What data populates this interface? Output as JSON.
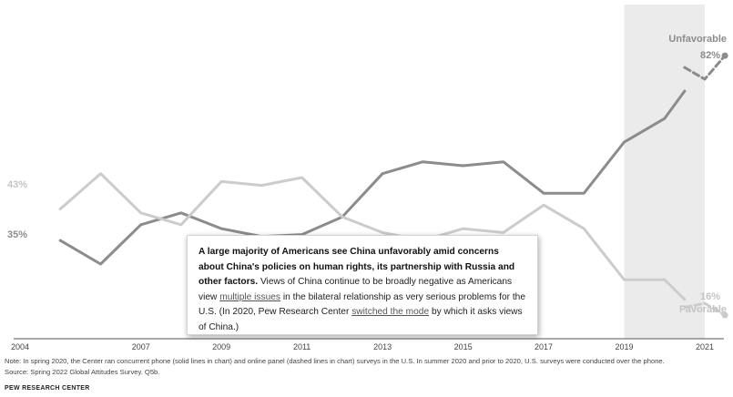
{
  "chart_data": {
    "type": "line",
    "xlim": [
      2004,
      2021
    ],
    "ylim": [
      10,
      95
    ],
    "x_ticks": [
      2004,
      2007,
      2009,
      2011,
      2013,
      2015,
      2017,
      2019,
      2021
    ],
    "shaded_region": [
      2019,
      2021
    ],
    "series": [
      {
        "name": "Unfavorable",
        "color": "#8c8c8c",
        "end_label": "82%",
        "start_label": "",
        "phone": [
          [
            2005,
            35
          ],
          [
            2006,
            29
          ],
          [
            2007,
            39
          ],
          [
            2008,
            42
          ],
          [
            2009,
            38
          ],
          [
            2010,
            36
          ],
          [
            2011,
            36.5
          ],
          [
            2012,
            41
          ],
          [
            2013,
            52
          ],
          [
            2014,
            55
          ],
          [
            2015,
            54
          ],
          [
            2016,
            55
          ],
          [
            2017,
            47
          ],
          [
            2018,
            47
          ],
          [
            2019,
            60
          ],
          [
            2020,
            66
          ],
          [
            2020.5,
            73
          ]
        ],
        "online": [
          [
            2020.5,
            79
          ],
          [
            2021,
            76
          ],
          [
            2021.5,
            82
          ]
        ]
      },
      {
        "name": "Favorable",
        "color": "#cccccc",
        "end_label": "16%",
        "start_label": "",
        "phone": [
          [
            2005,
            43
          ],
          [
            2006,
            52
          ],
          [
            2007,
            42
          ],
          [
            2008,
            39
          ],
          [
            2009,
            50
          ],
          [
            2010,
            49
          ],
          [
            2011,
            51
          ],
          [
            2012,
            41
          ],
          [
            2013,
            37
          ],
          [
            2014,
            35
          ],
          [
            2015,
            38
          ],
          [
            2016,
            37
          ],
          [
            2017,
            44
          ],
          [
            2018,
            38
          ],
          [
            2019,
            25
          ],
          [
            2020,
            25
          ],
          [
            2020.5,
            20
          ]
        ],
        "online": [
          [
            2020.5,
            18
          ],
          [
            2021,
            19
          ],
          [
            2021.5,
            16
          ]
        ]
      }
    ]
  },
  "left_labels": {
    "favorable_start": "43%",
    "unfavorable_start": "35%"
  },
  "right_labels": {
    "unfavorable_name": "Unfavorable",
    "unfavorable_value": "82%",
    "favorable_value": "16%",
    "favorable_name": "Favorable"
  },
  "callout": {
    "bold": "A large majority of Americans see China unfavorably amid concerns about China's policies on human rights, its partnership with Russia and other factors.",
    "text1": " Views of China continue to be broadly negative as Americans view ",
    "link1": "multiple issues",
    "text2": " in the bilateral relationship as very serious problems for the U.S. (In 2020, Pew Research Center ",
    "link2": "switched the mode",
    "text3": " by which it asks views of China.)"
  },
  "note": "Note: In spring 2020, the Center ran concurrent phone (solid lines in chart) and online panel (dashed lines in chart) surveys in the U.S. In summer 2020 and prior to 2020, U.S. surveys were conducted over the phone.",
  "source": "Source: Spring 2022 Global Attitudes Survey. Q5b.",
  "brand": "PEW RESEARCH CENTER"
}
